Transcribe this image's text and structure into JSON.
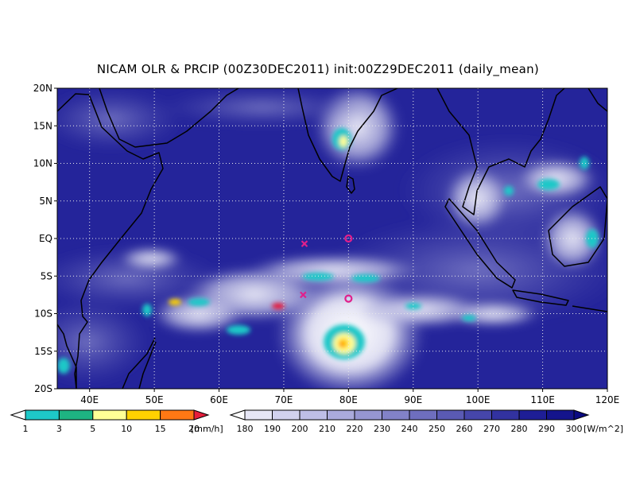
{
  "title": "NICAM OLR & PRCIP (00Z30DEC2011) init:00Z29DEC2011 (daily_mean)",
  "map": {
    "lon_range": [
      35,
      120
    ],
    "lat_range": [
      -20,
      20
    ],
    "lat_ticks": [
      "20N",
      "15N",
      "10N",
      "5N",
      "EQ",
      "5S",
      "10S",
      "15S",
      "20S"
    ],
    "lon_ticks": [
      "40E",
      "50E",
      "60E",
      "70E",
      "80E",
      "90E",
      "100E",
      "110E",
      "120E"
    ],
    "grid": "dotted",
    "markers": [
      {
        "symbol": "x",
        "lon": 73.2,
        "lat": -0.7,
        "color": "#e0208c"
      },
      {
        "symbol": "x",
        "lon": 73.0,
        "lat": -7.5,
        "color": "#e0208c"
      },
      {
        "symbol": "o",
        "lon": 80.0,
        "lat": 0.0,
        "color": "#e0208c"
      },
      {
        "symbol": "o",
        "lon": 80.0,
        "lat": -8.0,
        "color": "#e0208c"
      }
    ]
  },
  "precip_colorbar": {
    "unit": "[mm/h]",
    "labels": [
      "1",
      "3",
      "5",
      "10",
      "15",
      "20"
    ],
    "colors": [
      "#ffffff",
      "#1ec8c8",
      "#1eb482",
      "#ffff96",
      "#ffd200",
      "#ff7814",
      "#e61e3c"
    ]
  },
  "olr_colorbar": {
    "unit": "[W/m^2]",
    "labels": [
      "180",
      "190",
      "200",
      "210",
      "220",
      "230",
      "240",
      "250",
      "260",
      "270",
      "280",
      "290",
      "300"
    ],
    "colors": [
      "#ffffff",
      "#e6e6f5",
      "#d2d2ee",
      "#bebee6",
      "#aaaadc",
      "#9696d2",
      "#8282c8",
      "#6e6ebe",
      "#5a5ab4",
      "#4646aa",
      "#3232a0",
      "#1e1e96",
      "#14148c",
      "#0a0a82"
    ]
  }
}
